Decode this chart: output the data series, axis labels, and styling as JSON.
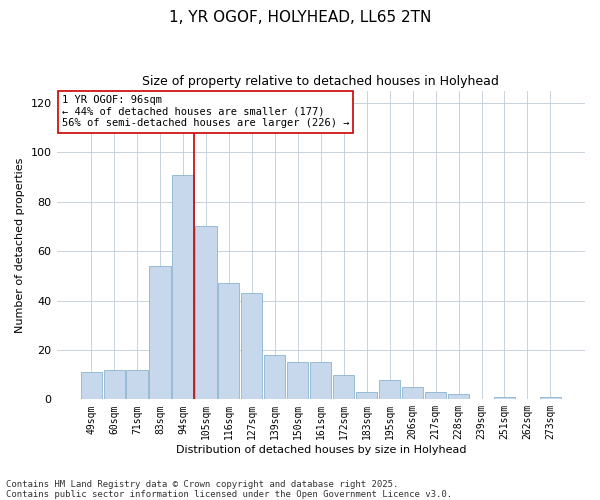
{
  "title": "1, YR OGOF, HOLYHEAD, LL65 2TN",
  "subtitle": "Size of property relative to detached houses in Holyhead",
  "xlabel": "Distribution of detached houses by size in Holyhead",
  "ylabel": "Number of detached properties",
  "bar_labels": [
    "49sqm",
    "60sqm",
    "71sqm",
    "83sqm",
    "94sqm",
    "105sqm",
    "116sqm",
    "127sqm",
    "139sqm",
    "150sqm",
    "161sqm",
    "172sqm",
    "183sqm",
    "195sqm",
    "206sqm",
    "217sqm",
    "228sqm",
    "239sqm",
    "251sqm",
    "262sqm",
    "273sqm"
  ],
  "bar_values": [
    11,
    12,
    12,
    54,
    91,
    70,
    47,
    43,
    18,
    15,
    15,
    10,
    3,
    8,
    5,
    3,
    2,
    0,
    1,
    0,
    1
  ],
  "bar_color": "#c8d8ec",
  "bar_edge_color": "#7aaac8",
  "vline_x": 4.5,
  "vline_color": "#cc0000",
  "annotation_text": "1 YR OGOF: 96sqm\n← 44% of detached houses are smaller (177)\n56% of semi-detached houses are larger (226) →",
  "annotation_box_color": "#ffffff",
  "annotation_box_edge_color": "#cc0000",
  "ylim": [
    0,
    125
  ],
  "yticks": [
    0,
    20,
    40,
    60,
    80,
    100,
    120
  ],
  "footer_text": "Contains HM Land Registry data © Crown copyright and database right 2025.\nContains public sector information licensed under the Open Government Licence v3.0.",
  "bg_color": "#ffffff",
  "plot_bg_color": "#ffffff",
  "title_fontsize": 11,
  "subtitle_fontsize": 9,
  "annotation_fontsize": 7.5,
  "footer_fontsize": 6.5,
  "axis_label_fontsize": 8,
  "tick_fontsize": 7
}
